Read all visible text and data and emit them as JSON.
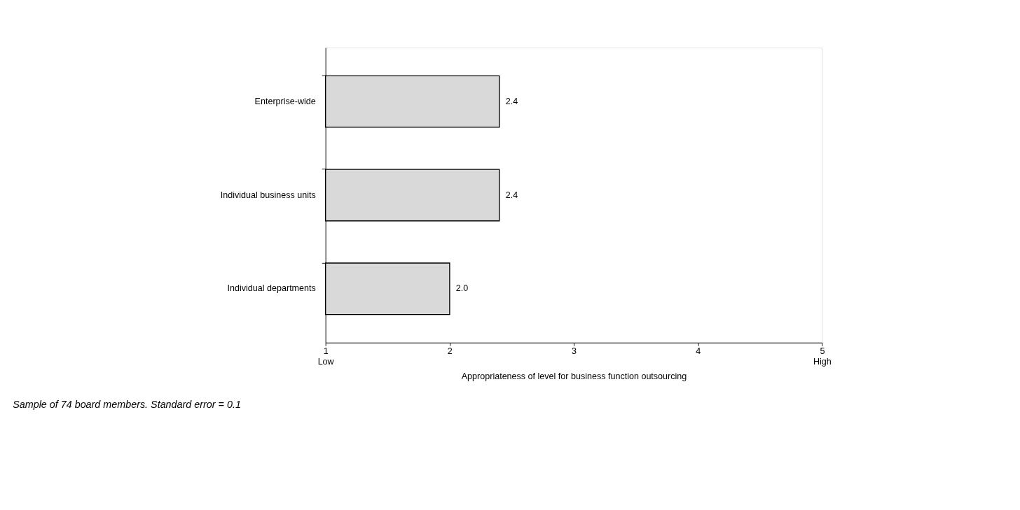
{
  "chart_data": {
    "type": "bar",
    "orientation": "horizontal",
    "categories": [
      "Enterprise-wide",
      "Individual business units",
      "Individual departments"
    ],
    "values": [
      2.4,
      2.4,
      2.0
    ],
    "value_labels": [
      "2.4",
      "2.4",
      "2.0"
    ],
    "color": "#d9d9d9",
    "xlabel": "Appropriateness of level for business function outsourcing",
    "xlim": [
      1,
      5
    ],
    "xticks": [
      {
        "value": 1,
        "label": "1\nLow"
      },
      2,
      3,
      4,
      {
        "value": 5,
        "label": "5\nHigh"
      }
    ],
    "grid": false,
    "annotations": [
      "Sample of 74 board members. Standard error = 0.1"
    ]
  }
}
